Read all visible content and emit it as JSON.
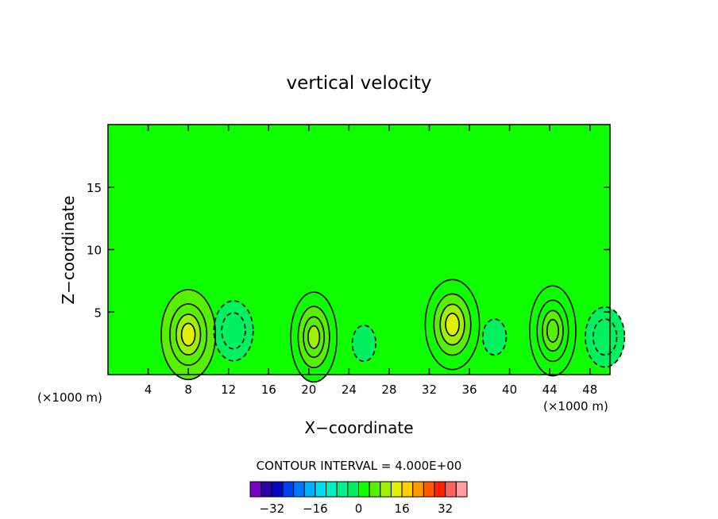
{
  "chart_data": {
    "type": "heatmap",
    "title": "vertical velocity",
    "xlabel": "X−coordinate",
    "ylabel": "Z−coordinate",
    "x_unit_left": "(×1000 m)",
    "x_unit_right": "(×1000 m)",
    "xlim": [
      0,
      50
    ],
    "ylim": [
      0,
      20
    ],
    "x_ticks": [
      "4",
      "8",
      "12",
      "16",
      "20",
      "24",
      "28",
      "32",
      "36",
      "40",
      "44",
      "48"
    ],
    "x_tick_values": [
      4,
      8,
      12,
      16,
      20,
      24,
      28,
      32,
      36,
      40,
      44,
      48
    ],
    "y_ticks": [
      "5",
      "10",
      "15"
    ],
    "y_tick_values": [
      5,
      10,
      15
    ],
    "contour_interval_label": "CONTOUR INTERVAL = 4.000E+00",
    "contour_interval": 4,
    "colorbar": {
      "tick_labels": [
        "−32",
        "−16",
        "0",
        "16",
        "32"
      ],
      "tick_values": [
        -32,
        -16,
        0,
        16,
        32
      ],
      "bins": [
        -36,
        -32,
        -28,
        -24,
        -20,
        -16,
        -12,
        -8,
        -4,
        0,
        4,
        8,
        12,
        16,
        20,
        24,
        28,
        32,
        36
      ],
      "colors": [
        "#7a00c8",
        "#2a00a8",
        "#0008c8",
        "#0040f0",
        "#0078ff",
        "#00b0ff",
        "#00dcf0",
        "#00f0c0",
        "#00f090",
        "#00f060",
        "#10ff00",
        "#58f000",
        "#a0f000",
        "#e0f000",
        "#ffd000",
        "#ff9800",
        "#ff5800",
        "#ff2000",
        "#ff6464",
        "#ff9c9c"
      ]
    },
    "background_range": [
      0,
      4
    ],
    "features": [
      {
        "sign": "positive",
        "x_center": 8,
        "z_center": 3.2,
        "peak": 13
      },
      {
        "sign": "negative",
        "x_center": 12.5,
        "z_center": 3.5,
        "peak": -5
      },
      {
        "sign": "positive",
        "x_center": 20.5,
        "z_center": 3,
        "peak": 9
      },
      {
        "sign": "negative",
        "x_center": 25.5,
        "z_center": 2.5,
        "peak": -3
      },
      {
        "sign": "positive",
        "x_center": 34.3,
        "z_center": 4,
        "peak": 12
      },
      {
        "sign": "negative",
        "x_center": 38.5,
        "z_center": 3,
        "peak": -3
      },
      {
        "sign": "positive",
        "x_center": 44.3,
        "z_center": 3.5,
        "peak": 7
      },
      {
        "sign": "negative",
        "x_center": 49.5,
        "z_center": 3,
        "peak": -5
      }
    ]
  }
}
